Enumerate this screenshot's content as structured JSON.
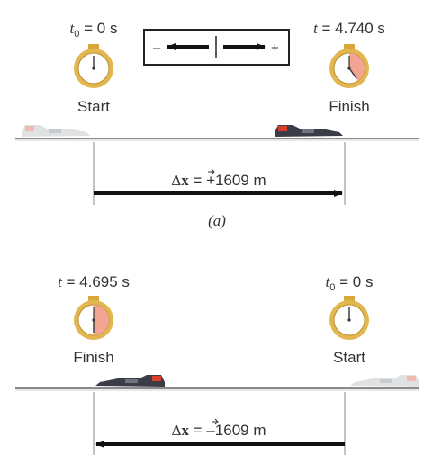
{
  "colors": {
    "ground": "#8a8a8a",
    "clock_rim": "#e0b24a",
    "clock_face": "#ffffff",
    "clock_shade": "#f3a593",
    "arrow": "#111111",
    "car_dark": "#3a3d48",
    "car_light": "#c7c9cc",
    "car_red": "#d9412b"
  },
  "legend": {
    "minus": "–",
    "plus": "+"
  },
  "panel_a": {
    "start": {
      "time_var": "t",
      "time_sub": "0",
      "time_rest": " = 0 s",
      "label": "Start",
      "elapsed_fraction": 0
    },
    "finish": {
      "time_var": "t",
      "time_rest": " = 4.740 s",
      "label": "Finish",
      "elapsed_fraction": 0.4
    },
    "displacement": {
      "delta": "Δ",
      "symbol": "x",
      "value": " = +1609 m"
    },
    "caption": "(a)"
  },
  "panel_b": {
    "start": {
      "time_var": "t",
      "time_sub": "0",
      "time_rest": " = 0 s",
      "label": "Start",
      "elapsed_fraction": 0
    },
    "finish": {
      "time_var": "t",
      "time_rest": " = 4.695 s",
      "label": "Finish",
      "elapsed_fraction": 0.5
    },
    "displacement": {
      "delta": "Δ",
      "symbol": "x",
      "value": " = –1609 m"
    }
  }
}
